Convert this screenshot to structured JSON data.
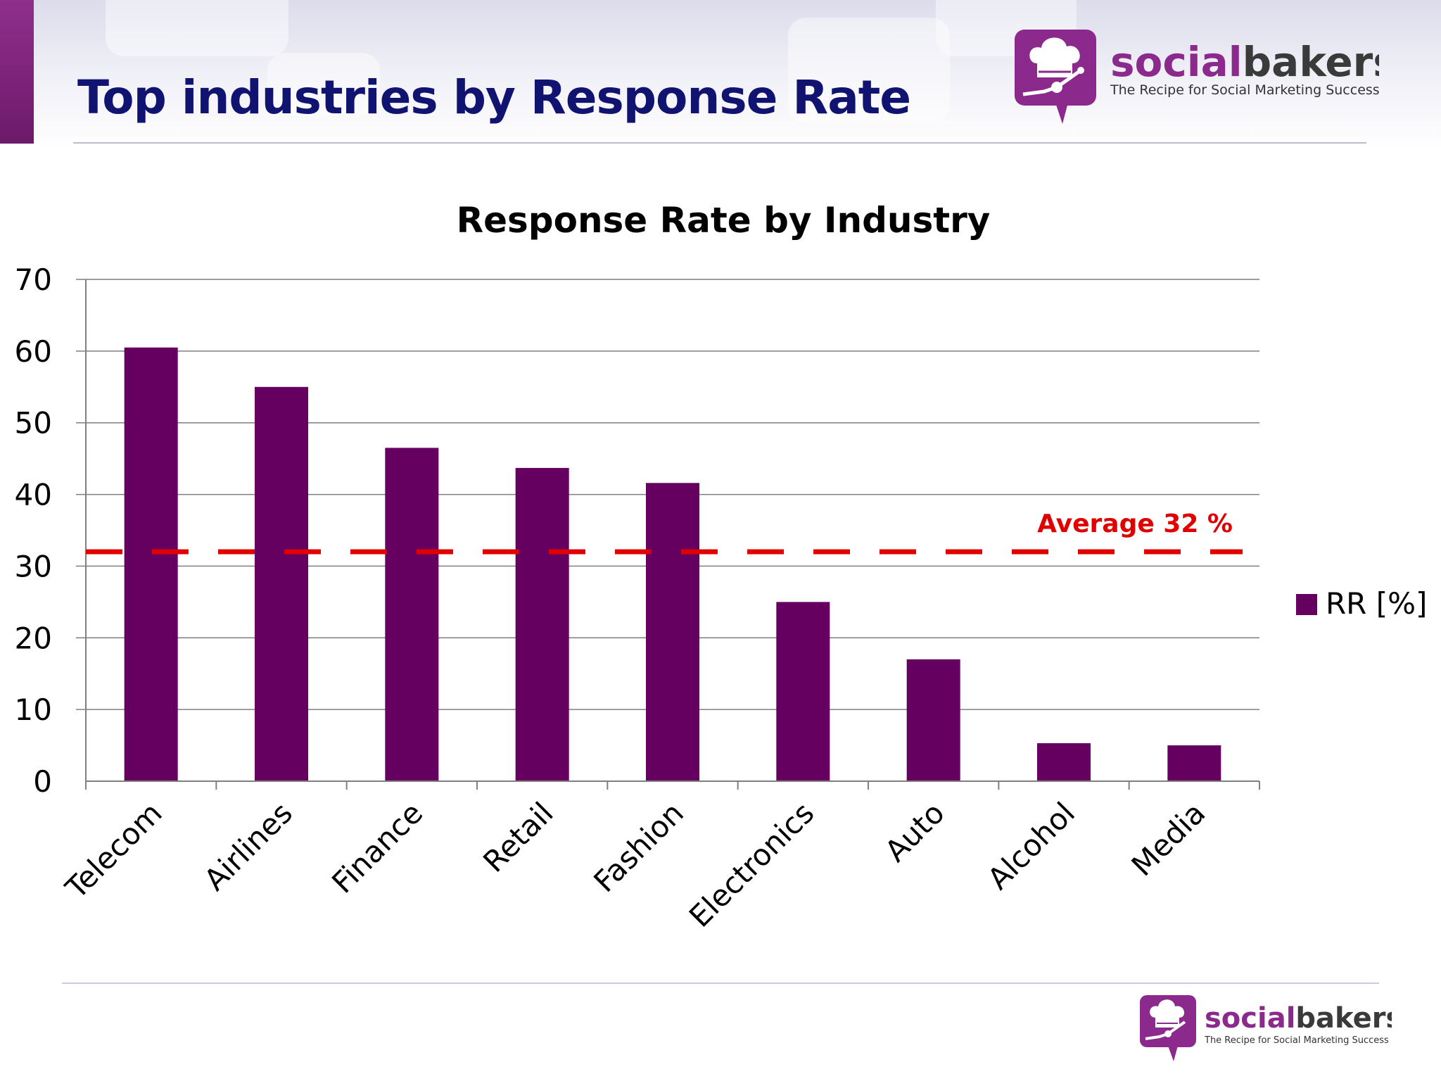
{
  "slide": {
    "title": "Top industries by Response Rate"
  },
  "brand": {
    "name_part1": "social",
    "name_part2": "bakers",
    "tagline": "The Recipe for Social Marketing Success",
    "colors": {
      "primary": "#8b2a8c",
      "dark": "#3a3a3a"
    }
  },
  "chart_data": {
    "type": "bar",
    "title": "Response Rate by Industry",
    "categories": [
      "Telecom",
      "Airlines",
      "Finance",
      "Retail",
      "Fashion",
      "Electronics",
      "Auto",
      "Alcohol",
      "Media"
    ],
    "series": [
      {
        "name": "RR [%]",
        "color": "#660060",
        "values": [
          60.5,
          55,
          46.5,
          43.7,
          41.6,
          25,
          17,
          5.3,
          5
        ]
      }
    ],
    "ylim": [
      0,
      70
    ],
    "yticks": [
      0,
      10,
      20,
      30,
      40,
      50,
      60,
      70
    ],
    "grid": true,
    "legend_position": "right",
    "reference_line": {
      "value": 32,
      "label": "Average 32 %",
      "color": "#e00000",
      "style": "dashed"
    }
  }
}
